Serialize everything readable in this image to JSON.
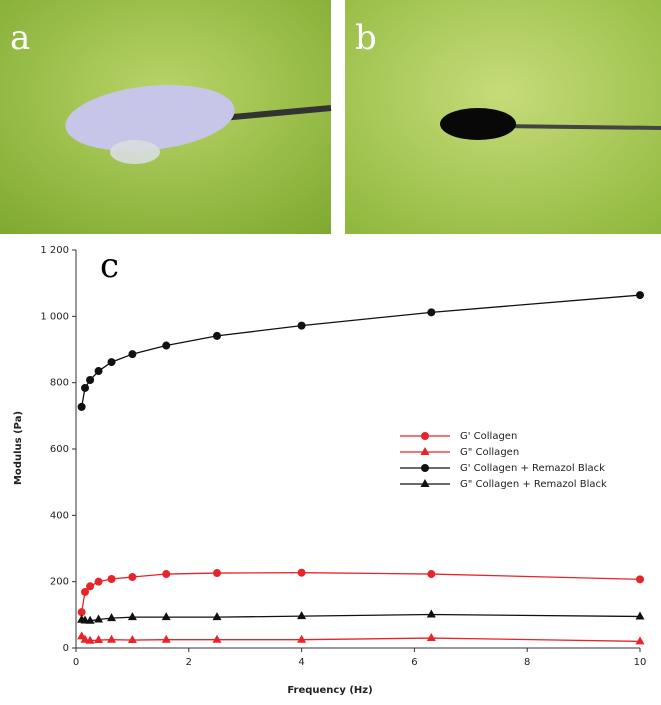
{
  "panels": [
    {
      "label": "a"
    },
    {
      "label": "b"
    }
  ],
  "chart_data": {
    "type": "line",
    "label": "c",
    "xlabel": "Frequency (Hz)",
    "ylabel": "Modulus (Pa)",
    "x": [
      0.1,
      0.16,
      0.25,
      0.4,
      0.63,
      1,
      1.6,
      2.5,
      4,
      6.3,
      10
    ],
    "series": [
      {
        "name": "G' Collagen",
        "color": "#e8232a",
        "marker": "circle",
        "values": [
          108,
          169,
          186,
          200,
          208,
          214,
          223,
          226,
          227,
          223,
          207
        ]
      },
      {
        "name": "G\" Collagen",
        "color": "#e8232a",
        "marker": "triangle",
        "values": [
          35,
          25,
          22,
          24,
          25,
          24,
          25,
          25,
          25,
          30,
          20
        ]
      },
      {
        "name": "G' Collagen + Remazol Black",
        "color": "#111111",
        "marker": "circle",
        "values": [
          727,
          784,
          808,
          835,
          862,
          886,
          912,
          941,
          972,
          1012,
          1064
        ]
      },
      {
        "name": "G\" Collagen + Remazol Black",
        "color": "#111111",
        "marker": "triangle",
        "values": [
          85,
          83,
          82,
          86,
          90,
          93,
          93,
          93,
          96,
          101,
          95
        ]
      }
    ],
    "xlim": [
      0,
      10
    ],
    "xticks": [
      0,
      2,
      4,
      6,
      8,
      10
    ],
    "ylim": [
      0,
      1200
    ],
    "yticks": [
      0,
      200,
      400,
      600,
      800,
      {
        "value": 1000,
        "label": "1 000"
      },
      {
        "value": 1200,
        "label": "1 200"
      }
    ],
    "legend": "center-right",
    "grid": false
  }
}
